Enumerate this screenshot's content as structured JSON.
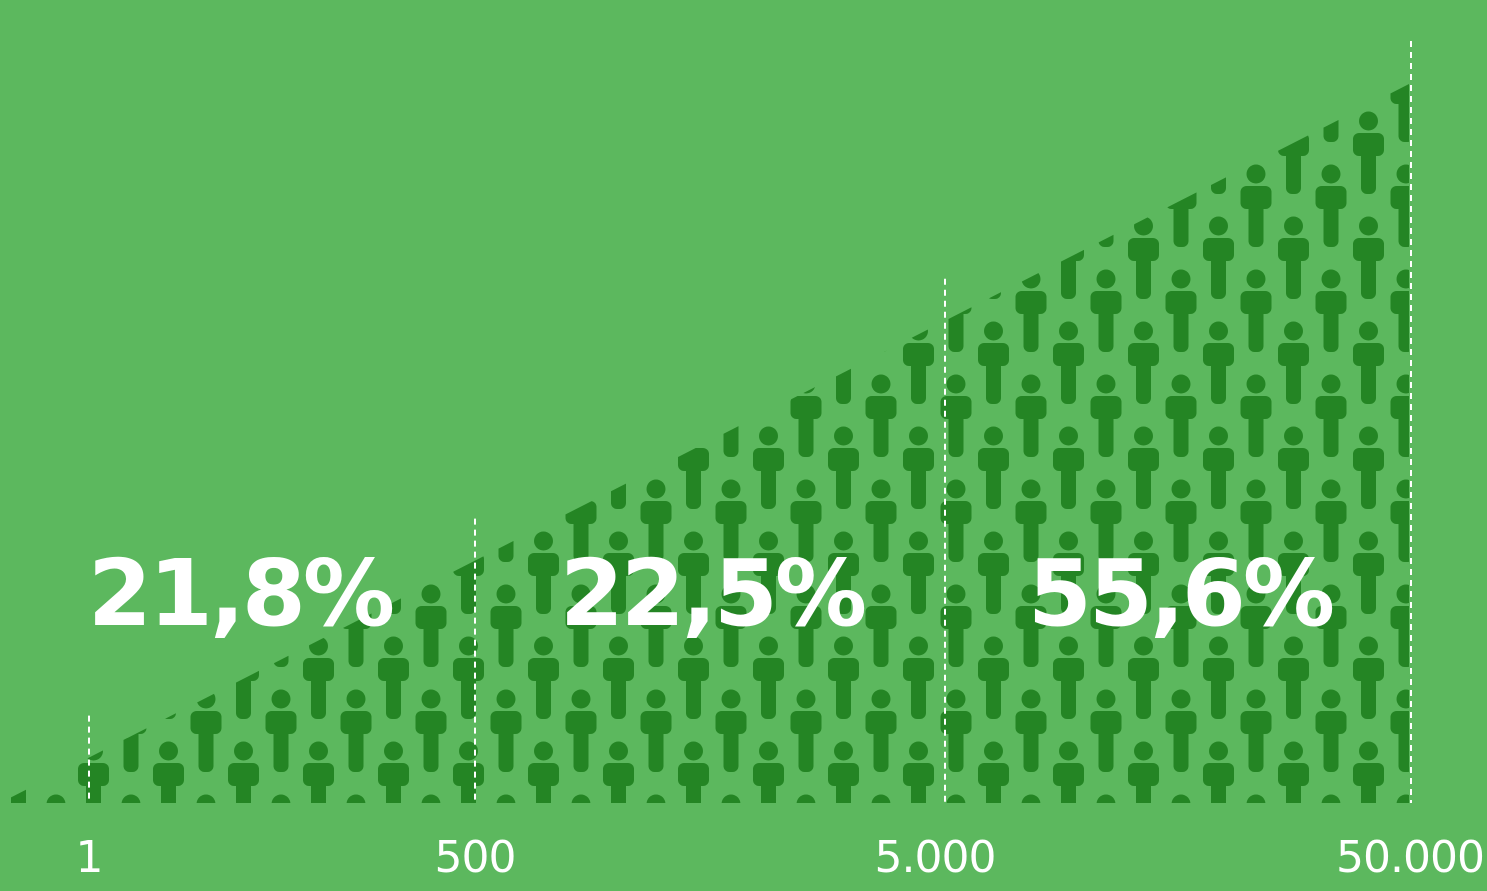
{
  "chart_data": {
    "type": "area",
    "title": "",
    "xlabel": "",
    "ylabel": "",
    "x_tick_labels": [
      "1",
      "500",
      "5.000",
      "50.000"
    ],
    "segments": [
      {
        "from": "1",
        "to": "500",
        "value": 21.8,
        "label": "21,8%"
      },
      {
        "from": "500",
        "to": "5.000",
        "value": 22.5,
        "label": "22,5%"
      },
      {
        "from": "5.000",
        "to": "50.000",
        "value": 55.6,
        "label": "55,6%"
      }
    ],
    "grid": false,
    "legend": "none",
    "icons": "person-icon",
    "colors": {
      "background": "#5cb85e",
      "fill": "#248524",
      "text": "#ffffff",
      "divider": "#ffffff"
    }
  }
}
